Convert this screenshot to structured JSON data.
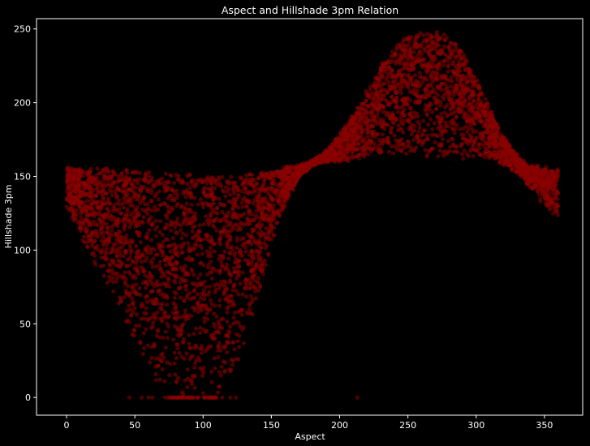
{
  "chart_data": {
    "type": "scatter",
    "title": "Aspect and Hillshade 3pm Relation",
    "xlabel": "Aspect",
    "ylabel": "Hillshade 3pm",
    "xlim": [
      -22,
      378
    ],
    "ylim": [
      -12,
      257
    ],
    "xticks": [
      0,
      50,
      100,
      150,
      200,
      250,
      300,
      350
    ],
    "yticks": [
      0,
      50,
      100,
      150,
      200,
      250
    ],
    "grid": false,
    "legend": "none",
    "colors": {
      "background": "#000000",
      "marker": "#8b0000",
      "axis": "#ffffff"
    },
    "series": [
      {
        "description_points": "dense point cloud; values sampled along visible envelopes",
        "x": [
          0,
          5,
          10,
          15,
          20,
          25,
          30,
          35,
          40,
          45,
          50,
          55,
          60,
          65,
          70,
          75,
          80,
          85,
          90,
          95,
          100,
          105,
          110,
          115,
          120,
          125,
          130,
          135,
          140,
          145,
          150,
          155,
          160,
          165,
          170,
          175,
          180,
          185,
          190,
          195,
          200,
          205,
          210,
          215,
          220,
          225,
          230,
          235,
          240,
          245,
          250,
          255,
          260,
          265,
          270,
          275,
          280,
          285,
          290,
          295,
          300,
          305,
          310,
          315,
          320,
          325,
          330,
          335,
          340,
          345,
          350,
          355,
          360
        ],
        "upper": [
          156,
          156,
          155,
          155,
          155,
          155,
          155,
          155,
          154,
          154,
          154,
          153,
          153,
          152,
          152,
          152,
          151,
          151,
          151,
          151,
          151,
          151,
          151,
          151,
          151,
          151,
          151,
          152,
          152,
          153,
          154,
          155,
          156,
          156,
          157,
          158,
          160,
          163,
          167,
          172,
          178,
          185,
          192,
          200,
          208,
          216,
          224,
          231,
          237,
          242,
          245,
          247,
          248,
          248,
          248,
          247,
          245,
          240,
          234,
          226,
          216,
          206,
          196,
          186,
          177,
          170,
          164,
          160,
          157,
          156,
          155,
          155,
          154
        ],
        "lower": [
          130,
          120,
          110,
          100,
          92,
          84,
          76,
          68,
          58,
          45,
          35,
          28,
          20,
          12,
          6,
          2,
          0,
          0,
          0,
          0,
          0,
          1,
          3,
          8,
          15,
          24,
          36,
          50,
          66,
          84,
          102,
          118,
          130,
          140,
          148,
          154,
          158,
          160,
          160,
          160,
          160,
          161,
          162,
          163,
          164,
          164,
          165,
          165,
          165,
          165,
          165,
          164,
          164,
          163,
          163,
          162,
          162,
          162,
          162,
          162,
          162,
          163,
          162,
          160,
          158,
          155,
          152,
          148,
          142,
          136,
          130,
          125,
          120
        ]
      }
    ]
  }
}
